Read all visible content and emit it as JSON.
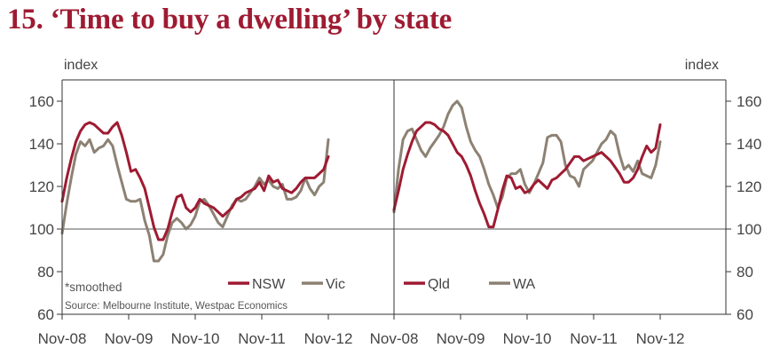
{
  "chart_data": {
    "type": "line",
    "title": "15. ‘Time to buy a dwelling’ by state",
    "ylabel_left": "index",
    "ylabel_right": "index",
    "ylim": [
      60,
      170
    ],
    "y_ticks": [
      60,
      80,
      100,
      120,
      140,
      160
    ],
    "reference_line": 100,
    "x_ticks": [
      "Nov-08",
      "Nov-09",
      "Nov-10",
      "Nov-11",
      "Nov-12",
      "Nov-08",
      "Nov-09",
      "Nov-10",
      "Nov-11",
      "Nov-12"
    ],
    "note": "*smoothed",
    "source": "Source: Melbourne Institute, Westpac Economics",
    "colors": {
      "primary": "#9e1b32",
      "secondary": "#8c8173",
      "axis": "#333333",
      "grid": "#555555"
    },
    "panels": [
      {
        "name": "left",
        "series": [
          {
            "name": "NSW",
            "color": "#9e1b32",
            "values": [
              113,
              124,
              133,
              141,
              146,
              149,
              150,
              149,
              147,
              145,
              145,
              148,
              150,
              144,
              136,
              127,
              128,
              124,
              119,
              110,
              101,
              95,
              95,
              100,
              108,
              115,
              116,
              110,
              108,
              110,
              114,
              112,
              111,
              110,
              108,
              106,
              108,
              110,
              114,
              115,
              117,
              118,
              119,
              122,
              118,
              125,
              122,
              123,
              119,
              118,
              117,
              119,
              122,
              124,
              124,
              124,
              126,
              128,
              134
            ]
          },
          {
            "name": "Vic",
            "color": "#8c8173",
            "values": [
              98,
              112,
              124,
              135,
              141,
              139,
              142,
              136,
              138,
              139,
              142,
              139,
              130,
              122,
              114,
              113,
              113,
              114,
              104,
              97,
              85,
              85,
              88,
              97,
              103,
              105,
              103,
              100,
              102,
              106,
              113,
              114,
              111,
              107,
              103,
              101,
              106,
              111,
              114,
              113,
              114,
              117,
              120,
              124,
              121,
              123,
              120,
              119,
              121,
              114,
              114,
              115,
              118,
              124,
              119,
              116,
              120,
              122,
              142
            ]
          }
        ]
      },
      {
        "name": "right",
        "series": [
          {
            "name": "Qld",
            "color": "#9e1b32",
            "values": [
              109,
              118,
              128,
              135,
              141,
              146,
              148,
              150,
              150,
              149,
              147,
              146,
              144,
              140,
              136,
              134,
              130,
              125,
              118,
              112,
              107,
              101,
              101,
              109,
              118,
              125,
              124,
              119,
              120,
              117,
              118,
              121,
              123,
              121,
              119,
              123,
              124,
              126,
              128,
              131,
              134,
              134,
              132,
              133,
              134,
              135,
              136,
              134,
              132,
              129,
              126,
              122,
              122,
              124,
              128,
              134,
              139,
              136,
              138,
              149
            ]
          },
          {
            "name": "WA",
            "color": "#8c8173",
            "values": [
              108,
              128,
              142,
              146,
              147,
              142,
              137,
              134,
              138,
              141,
              144,
              148,
              154,
              158,
              160,
              157,
              148,
              141,
              137,
              134,
              128,
              121,
              116,
              110,
              115,
              124,
              126,
              126,
              128,
              121,
              117,
              121,
              126,
              131,
              143,
              144,
              144,
              141,
              130,
              125,
              124,
              120,
              128,
              130,
              132,
              136,
              140,
              142,
              146,
              144,
              135,
              128,
              130,
              127,
              132,
              126,
              125,
              124,
              130,
              141
            ]
          }
        ]
      }
    ]
  }
}
